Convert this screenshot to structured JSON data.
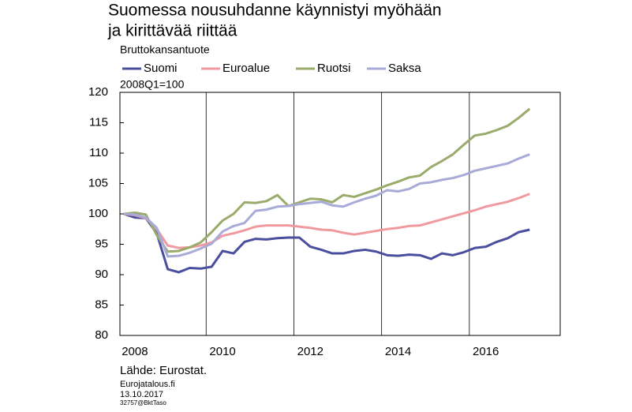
{
  "chart_data": {
    "type": "line",
    "title": [
      "Suomessa nousuhdanne käynnistyi myöhään",
      "ja kirittävää riittää"
    ],
    "subtitle": "Bruttokansantuote",
    "y_label": "2008Q1=100",
    "source": "Lähde: Eurostat.",
    "footer": [
      "Eurojatalous.fi",
      "13.10.2017",
      "32757@BktTaso"
    ],
    "categories": [
      null,
      "2008",
      null,
      null,
      null,
      null,
      null,
      null,
      null,
      "2010",
      null,
      null,
      null,
      null,
      null,
      null,
      null,
      "2012",
      null,
      null,
      null,
      null,
      null,
      null,
      null,
      "2014",
      null,
      null,
      null,
      null,
      null,
      null,
      null,
      "2016",
      null,
      null,
      null,
      null
    ],
    "series": [
      {
        "name": "Suomi",
        "color": "#4a4e9e",
        "values": [
          100,
          99.4,
          99.3,
          96.8,
          90.9,
          90.4,
          91.1,
          91.0,
          91.3,
          93.9,
          93.5,
          95.4,
          95.9,
          95.8,
          96.0,
          96.1,
          96.1,
          94.6,
          94.1,
          93.5,
          93.5,
          93.9,
          94.1,
          93.8,
          93.2,
          93.1,
          93.3,
          93.2,
          92.6,
          93.5,
          93.2,
          93.7,
          94.4,
          94.6,
          95.4,
          96.0,
          97.0,
          97.4
        ]
      },
      {
        "name": "Euroalue",
        "color": "#f09aa0",
        "values": [
          100,
          99.8,
          99.3,
          97.5,
          94.8,
          94.4,
          94.5,
          94.8,
          95.3,
          96.4,
          96.8,
          97.3,
          97.9,
          98.1,
          98.1,
          98.1,
          97.9,
          97.7,
          97.4,
          97.3,
          96.9,
          96.6,
          96.9,
          97.2,
          97.5,
          97.7,
          98.0,
          98.1,
          98.6,
          99.1,
          99.6,
          100.1,
          100.6,
          101.2,
          101.6,
          102.0,
          102.6,
          103.3
        ]
      },
      {
        "name": "Ruotsi",
        "color": "#9aab6c",
        "values": [
          100,
          100.2,
          99.9,
          96.5,
          93.8,
          93.9,
          94.5,
          95.3,
          97.0,
          98.9,
          100.0,
          101.9,
          101.8,
          102.1,
          103.1,
          101.3,
          101.9,
          102.5,
          102.4,
          101.9,
          103.1,
          102.8,
          103.4,
          104.0,
          104.7,
          105.3,
          106.0,
          106.3,
          107.7,
          108.7,
          109.8,
          111.4,
          112.9,
          113.2,
          113.8,
          114.5,
          115.8,
          117.3
        ]
      },
      {
        "name": "Saksa",
        "color": "#a8aad8",
        "values": [
          100,
          99.9,
          99.4,
          97.7,
          93.0,
          93.1,
          93.6,
          94.3,
          95.1,
          97.1,
          98.0,
          98.5,
          100.5,
          100.7,
          101.2,
          101.3,
          101.6,
          101.8,
          102.0,
          101.4,
          101.2,
          101.9,
          102.5,
          103.0,
          103.9,
          103.7,
          104.1,
          105.0,
          105.2,
          105.6,
          105.9,
          106.4,
          107.1,
          107.5,
          107.9,
          108.3,
          109.1,
          109.8
        ]
      }
    ],
    "ylim": [
      80,
      120
    ],
    "yticks": [
      80,
      85,
      90,
      95,
      100,
      105,
      110,
      115,
      120
    ]
  }
}
